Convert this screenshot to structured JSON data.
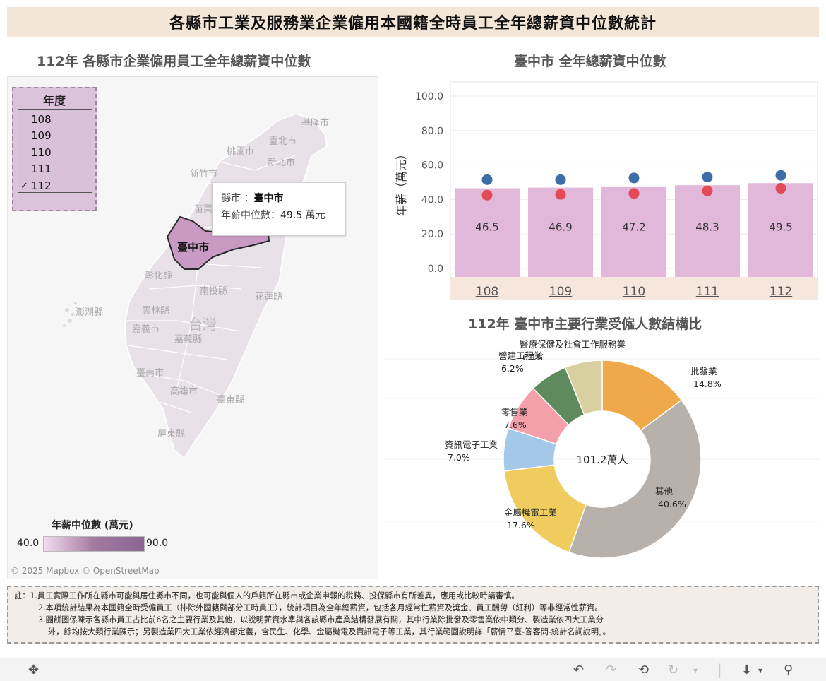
{
  "banner_title": "各縣市工業及服務業企業僱用本國籍全時員工全年總薪資中位數統計",
  "map": {
    "title": "112年 各縣市企業僱用員工全年總薪資中位數",
    "year_filter": {
      "title": "年度",
      "options": [
        "108",
        "109",
        "110",
        "111",
        "112"
      ],
      "selected": "112",
      "check_mark": "✓"
    },
    "tooltip": {
      "county_label": "縣市 ：",
      "county_value": "臺中市",
      "salary_label": "年薪中位數：",
      "salary_value": "49.5",
      "unit": "萬元"
    },
    "labels": {
      "keelung": "基隆市",
      "taipei": "臺北市",
      "taoyuan": "桃園市",
      "newtaipei": "新北市",
      "hsinchu": "新竹市",
      "miaoli": "苗栗",
      "taichung": "臺中市",
      "changhua": "彰化縣",
      "nantou": "南投縣",
      "hualien": "花蓮縣",
      "penghu": "澎湖縣",
      "yunlin": "雲林縣",
      "chiayi_city": "嘉義市",
      "taiwan": "台灣",
      "chiayi_county": "嘉義縣",
      "tainan": "臺南市",
      "kaohsiung": "高雄市",
      "taitung": "臺東縣",
      "pingtung": "屏東縣"
    },
    "legend": {
      "title": "年薪中位數 (萬元)",
      "min": "40.0",
      "max": "90.0"
    },
    "attribution": "© 2025 Mapbox  © OpenStreetMap"
  },
  "bar_chart": {
    "title": "臺中市 全年總薪資中位數",
    "chart_data": {
      "type": "bar",
      "categories": [
        "108",
        "109",
        "110",
        "111",
        "112"
      ],
      "values": [
        46.5,
        46.9,
        47.2,
        48.3,
        49.5
      ],
      "value_labels": [
        "46.5",
        "46.9",
        "47.2",
        "48.3",
        "49.5"
      ],
      "blue_dots": [
        51.5,
        51.5,
        52.5,
        53.0,
        54.0
      ],
      "red_dots": [
        42.5,
        43.0,
        43.5,
        45.0,
        46.5
      ],
      "ylabel": "年薪（萬元）",
      "yticks": [
        "100.0",
        "80.0",
        "60.0",
        "40.0",
        "20.0",
        "0.0"
      ],
      "ylim": [
        0,
        100
      ],
      "colors": {
        "bar": "#e2b8da",
        "blue_dot": "#3d6ea8",
        "red_dot": "#e24a55",
        "axis_band": "#f6e6dc"
      }
    }
  },
  "pie_chart": {
    "title": "112年  臺中市主要行業受僱人數結構比",
    "center_label": "101.2萬人",
    "chart_data": {
      "type": "pie",
      "slices": [
        {
          "label": "批發業",
          "pct": "14.8%",
          "value": 14.8,
          "color": "#f0a94a"
        },
        {
          "label": "其他",
          "pct": "40.6%",
          "value": 40.6,
          "color": "#b8b0aa"
        },
        {
          "label": "金屬機電工業",
          "pct": "17.6%",
          "value": 17.6,
          "color": "#f0cc5e"
        },
        {
          "label": "資訊電子工業",
          "pct": "7.0%",
          "value": 7.0,
          "color": "#a4c9e8"
        },
        {
          "label": "零售業",
          "pct": "7.6%",
          "value": 7.6,
          "color": "#f4a0aa"
        },
        {
          "label": "營建工程業",
          "pct": "6.2%",
          "value": 6.2,
          "color": "#5f8a5e"
        },
        {
          "label": "醫療保健及社會工作服務業",
          "pct": "6.1%",
          "value": 6.1,
          "color": "#d8d09e"
        }
      ]
    }
  },
  "notes": {
    "line1": "註：1.員工實際工作所在縣市可能與居住縣市不同，也可能與個人的戶籍所在縣市或企業申報的稅務、投保縣市有所差異，應用或比較時請審慎。",
    "line2": "2.本項統計結果為本國籍全時受僱員工（排除外國籍與部分工時員工），統計項目為全年總薪資，包括各月經常性薪資及獎金、員工酬勞（紅利）等非經常性薪資。",
    "line3": "3.圓餅圖係陳示各縣市員工占比前6名之主要行業及其他，以說明薪資水準與各該縣市產業結構發展有關，其中行業除批發及零售業依中類分、製造業依四大工業分",
    "line4": "外，餘均按大類行業陳示；另製造業四大工業依經濟部定義，含民生、化學、金屬機電及資訊電子等工業，其行業範圍說明詳「薪情平臺-答客問-統計名詞說明」。"
  },
  "toolbar": {
    "move": "✥",
    "undo": "↶",
    "redo": "↷",
    "revert": "⟲",
    "pause": "↻",
    "dropdown": "▾",
    "download": "⬇",
    "share": "⚲"
  }
}
